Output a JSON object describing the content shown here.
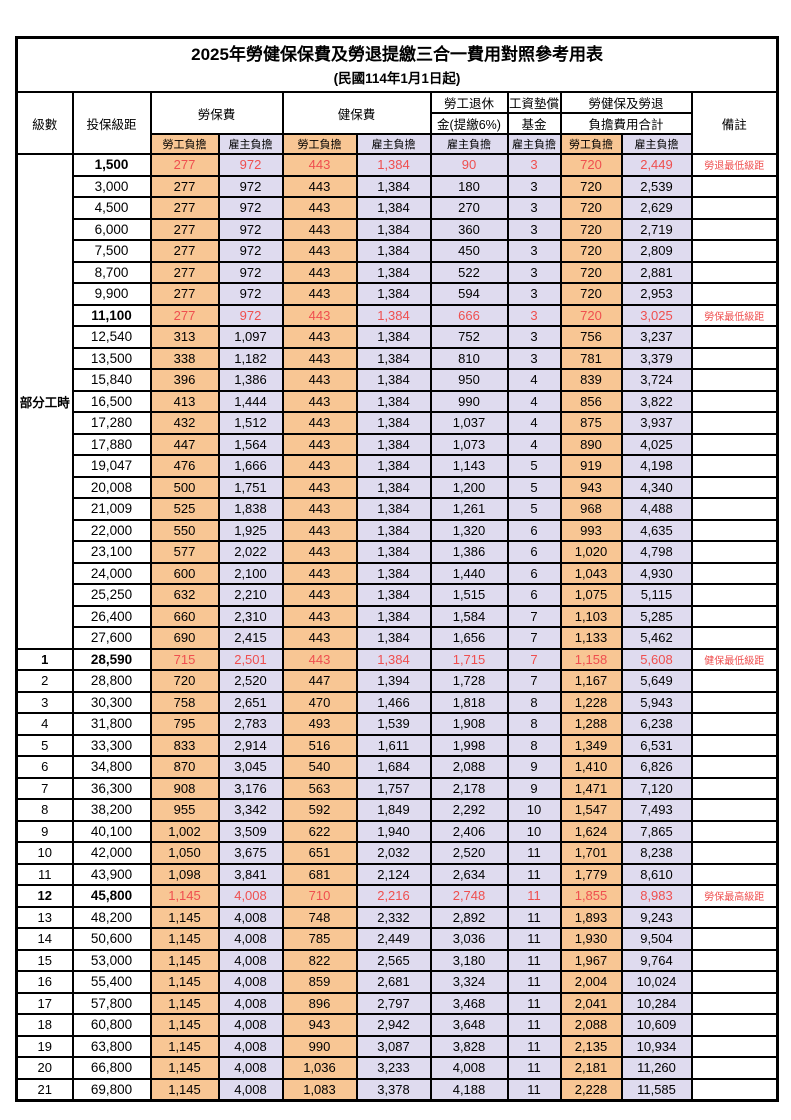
{
  "title": "2025年勞健保保費及勞退提繳三合一費用對照參考用表",
  "subtitle": "(民國114年1月1日起)",
  "part_time_label": "部分工時",
  "colors": {
    "employee_share_bg": "#f8c694",
    "employer_share_bg": "#dfdbef",
    "highlight_text": "#ef4f4f",
    "border": "#000000"
  },
  "header": {
    "level": "級數",
    "salary": "投保級距",
    "labor_insurance": "勞保費",
    "health_insurance": "健保費",
    "pension_line1": "勞工退休",
    "pension_line2": "金(提繳6%)",
    "wage_fund_line1": "工資墊償",
    "wage_fund_line2": "基金",
    "total_line1": "勞健保及勞退",
    "total_line2": "負擔費用合計",
    "note": "備註",
    "sub_employee": "勞工負擔",
    "sub_employer": "雇主負擔"
  },
  "rows": [
    {
      "level": null,
      "salary": "1,500",
      "labor_employee": "277",
      "labor_employer": "972",
      "health_employee": "443",
      "health_employer": "1,384",
      "pension_employer": "90",
      "fund_employer": "3",
      "total_employee": "720",
      "total_employer": "2,449",
      "note": "勞退最低級距",
      "hl": true
    },
    {
      "level": null,
      "salary": "3,000",
      "labor_employee": "277",
      "labor_employer": "972",
      "health_employee": "443",
      "health_employer": "1,384",
      "pension_employer": "180",
      "fund_employer": "3",
      "total_employee": "720",
      "total_employer": "2,539",
      "note": "",
      "hl": false
    },
    {
      "level": null,
      "salary": "4,500",
      "labor_employee": "277",
      "labor_employer": "972",
      "health_employee": "443",
      "health_employer": "1,384",
      "pension_employer": "270",
      "fund_employer": "3",
      "total_employee": "720",
      "total_employer": "2,629",
      "note": "",
      "hl": false
    },
    {
      "level": null,
      "salary": "6,000",
      "labor_employee": "277",
      "labor_employer": "972",
      "health_employee": "443",
      "health_employer": "1,384",
      "pension_employer": "360",
      "fund_employer": "3",
      "total_employee": "720",
      "total_employer": "2,719",
      "note": "",
      "hl": false
    },
    {
      "level": null,
      "salary": "7,500",
      "labor_employee": "277",
      "labor_employer": "972",
      "health_employee": "443",
      "health_employer": "1,384",
      "pension_employer": "450",
      "fund_employer": "3",
      "total_employee": "720",
      "total_employer": "2,809",
      "note": "",
      "hl": false
    },
    {
      "level": null,
      "salary": "8,700",
      "labor_employee": "277",
      "labor_employer": "972",
      "health_employee": "443",
      "health_employer": "1,384",
      "pension_employer": "522",
      "fund_employer": "3",
      "total_employee": "720",
      "total_employer": "2,881",
      "note": "",
      "hl": false
    },
    {
      "level": null,
      "salary": "9,900",
      "labor_employee": "277",
      "labor_employer": "972",
      "health_employee": "443",
      "health_employer": "1,384",
      "pension_employer": "594",
      "fund_employer": "3",
      "total_employee": "720",
      "total_employer": "2,953",
      "note": "",
      "hl": false
    },
    {
      "level": null,
      "salary": "11,100",
      "labor_employee": "277",
      "labor_employer": "972",
      "health_employee": "443",
      "health_employer": "1,384",
      "pension_employer": "666",
      "fund_employer": "3",
      "total_employee": "720",
      "total_employer": "3,025",
      "note": "勞保最低級距",
      "hl": true
    },
    {
      "level": null,
      "salary": "12,540",
      "labor_employee": "313",
      "labor_employer": "1,097",
      "health_employee": "443",
      "health_employer": "1,384",
      "pension_employer": "752",
      "fund_employer": "3",
      "total_employee": "756",
      "total_employer": "3,237",
      "note": "",
      "hl": false
    },
    {
      "level": null,
      "salary": "13,500",
      "labor_employee": "338",
      "labor_employer": "1,182",
      "health_employee": "443",
      "health_employer": "1,384",
      "pension_employer": "810",
      "fund_employer": "3",
      "total_employee": "781",
      "total_employer": "3,379",
      "note": "",
      "hl": false
    },
    {
      "level": null,
      "salary": "15,840",
      "labor_employee": "396",
      "labor_employer": "1,386",
      "health_employee": "443",
      "health_employer": "1,384",
      "pension_employer": "950",
      "fund_employer": "4",
      "total_employee": "839",
      "total_employer": "3,724",
      "note": "",
      "hl": false
    },
    {
      "level": null,
      "salary": "16,500",
      "labor_employee": "413",
      "labor_employer": "1,444",
      "health_employee": "443",
      "health_employer": "1,384",
      "pension_employer": "990",
      "fund_employer": "4",
      "total_employee": "856",
      "total_employer": "3,822",
      "note": "",
      "hl": false
    },
    {
      "level": null,
      "salary": "17,280",
      "labor_employee": "432",
      "labor_employer": "1,512",
      "health_employee": "443",
      "health_employer": "1,384",
      "pension_employer": "1,037",
      "fund_employer": "4",
      "total_employee": "875",
      "total_employer": "3,937",
      "note": "",
      "hl": false
    },
    {
      "level": null,
      "salary": "17,880",
      "labor_employee": "447",
      "labor_employer": "1,564",
      "health_employee": "443",
      "health_employer": "1,384",
      "pension_employer": "1,073",
      "fund_employer": "4",
      "total_employee": "890",
      "total_employer": "4,025",
      "note": "",
      "hl": false
    },
    {
      "level": null,
      "salary": "19,047",
      "labor_employee": "476",
      "labor_employer": "1,666",
      "health_employee": "443",
      "health_employer": "1,384",
      "pension_employer": "1,143",
      "fund_employer": "5",
      "total_employee": "919",
      "total_employer": "4,198",
      "note": "",
      "hl": false
    },
    {
      "level": null,
      "salary": "20,008",
      "labor_employee": "500",
      "labor_employer": "1,751",
      "health_employee": "443",
      "health_employer": "1,384",
      "pension_employer": "1,200",
      "fund_employer": "5",
      "total_employee": "943",
      "total_employer": "4,340",
      "note": "",
      "hl": false
    },
    {
      "level": null,
      "salary": "21,009",
      "labor_employee": "525",
      "labor_employer": "1,838",
      "health_employee": "443",
      "health_employer": "1,384",
      "pension_employer": "1,261",
      "fund_employer": "5",
      "total_employee": "968",
      "total_employer": "4,488",
      "note": "",
      "hl": false
    },
    {
      "level": null,
      "salary": "22,000",
      "labor_employee": "550",
      "labor_employer": "1,925",
      "health_employee": "443",
      "health_employer": "1,384",
      "pension_employer": "1,320",
      "fund_employer": "6",
      "total_employee": "993",
      "total_employer": "4,635",
      "note": "",
      "hl": false
    },
    {
      "level": null,
      "salary": "23,100",
      "labor_employee": "577",
      "labor_employer": "2,022",
      "health_employee": "443",
      "health_employer": "1,384",
      "pension_employer": "1,386",
      "fund_employer": "6",
      "total_employee": "1,020",
      "total_employer": "4,798",
      "note": "",
      "hl": false
    },
    {
      "level": null,
      "salary": "24,000",
      "labor_employee": "600",
      "labor_employer": "2,100",
      "health_employee": "443",
      "health_employer": "1,384",
      "pension_employer": "1,440",
      "fund_employer": "6",
      "total_employee": "1,043",
      "total_employer": "4,930",
      "note": "",
      "hl": false
    },
    {
      "level": null,
      "salary": "25,250",
      "labor_employee": "632",
      "labor_employer": "2,210",
      "health_employee": "443",
      "health_employer": "1,384",
      "pension_employer": "1,515",
      "fund_employer": "6",
      "total_employee": "1,075",
      "total_employer": "5,115",
      "note": "",
      "hl": false
    },
    {
      "level": null,
      "salary": "26,400",
      "labor_employee": "660",
      "labor_employer": "2,310",
      "health_employee": "443",
      "health_employer": "1,384",
      "pension_employer": "1,584",
      "fund_employer": "7",
      "total_employee": "1,103",
      "total_employer": "5,285",
      "note": "",
      "hl": false
    },
    {
      "level": null,
      "salary": "27,600",
      "labor_employee": "690",
      "labor_employer": "2,415",
      "health_employee": "443",
      "health_employer": "1,384",
      "pension_employer": "1,656",
      "fund_employer": "7",
      "total_employee": "1,133",
      "total_employer": "5,462",
      "note": "",
      "hl": false
    },
    {
      "level": "1",
      "salary": "28,590",
      "labor_employee": "715",
      "labor_employer": "2,501",
      "health_employee": "443",
      "health_employer": "1,384",
      "pension_employer": "1,715",
      "fund_employer": "7",
      "total_employee": "1,158",
      "total_employer": "5,608",
      "note": "健保最低級距",
      "hl": true
    },
    {
      "level": "2",
      "salary": "28,800",
      "labor_employee": "720",
      "labor_employer": "2,520",
      "health_employee": "447",
      "health_employer": "1,394",
      "pension_employer": "1,728",
      "fund_employer": "7",
      "total_employee": "1,167",
      "total_employer": "5,649",
      "note": "",
      "hl": false
    },
    {
      "level": "3",
      "salary": "30,300",
      "labor_employee": "758",
      "labor_employer": "2,651",
      "health_employee": "470",
      "health_employer": "1,466",
      "pension_employer": "1,818",
      "fund_employer": "8",
      "total_employee": "1,228",
      "total_employer": "5,943",
      "note": "",
      "hl": false
    },
    {
      "level": "4",
      "salary": "31,800",
      "labor_employee": "795",
      "labor_employer": "2,783",
      "health_employee": "493",
      "health_employer": "1,539",
      "pension_employer": "1,908",
      "fund_employer": "8",
      "total_employee": "1,288",
      "total_employer": "6,238",
      "note": "",
      "hl": false
    },
    {
      "level": "5",
      "salary": "33,300",
      "labor_employee": "833",
      "labor_employer": "2,914",
      "health_employee": "516",
      "health_employer": "1,611",
      "pension_employer": "1,998",
      "fund_employer": "8",
      "total_employee": "1,349",
      "total_employer": "6,531",
      "note": "",
      "hl": false
    },
    {
      "level": "6",
      "salary": "34,800",
      "labor_employee": "870",
      "labor_employer": "3,045",
      "health_employee": "540",
      "health_employer": "1,684",
      "pension_employer": "2,088",
      "fund_employer": "9",
      "total_employee": "1,410",
      "total_employer": "6,826",
      "note": "",
      "hl": false
    },
    {
      "level": "7",
      "salary": "36,300",
      "labor_employee": "908",
      "labor_employer": "3,176",
      "health_employee": "563",
      "health_employer": "1,757",
      "pension_employer": "2,178",
      "fund_employer": "9",
      "total_employee": "1,471",
      "total_employer": "7,120",
      "note": "",
      "hl": false
    },
    {
      "level": "8",
      "salary": "38,200",
      "labor_employee": "955",
      "labor_employer": "3,342",
      "health_employee": "592",
      "health_employer": "1,849",
      "pension_employer": "2,292",
      "fund_employer": "10",
      "total_employee": "1,547",
      "total_employer": "7,493",
      "note": "",
      "hl": false
    },
    {
      "level": "9",
      "salary": "40,100",
      "labor_employee": "1,002",
      "labor_employer": "3,509",
      "health_employee": "622",
      "health_employer": "1,940",
      "pension_employer": "2,406",
      "fund_employer": "10",
      "total_employee": "1,624",
      "total_employer": "7,865",
      "note": "",
      "hl": false
    },
    {
      "level": "10",
      "salary": "42,000",
      "labor_employee": "1,050",
      "labor_employer": "3,675",
      "health_employee": "651",
      "health_employer": "2,032",
      "pension_employer": "2,520",
      "fund_employer": "11",
      "total_employee": "1,701",
      "total_employer": "8,238",
      "note": "",
      "hl": false
    },
    {
      "level": "11",
      "salary": "43,900",
      "labor_employee": "1,098",
      "labor_employer": "3,841",
      "health_employee": "681",
      "health_employer": "2,124",
      "pension_employer": "2,634",
      "fund_employer": "11",
      "total_employee": "1,779",
      "total_employer": "8,610",
      "note": "",
      "hl": false
    },
    {
      "level": "12",
      "salary": "45,800",
      "labor_employee": "1,145",
      "labor_employer": "4,008",
      "health_employee": "710",
      "health_employer": "2,216",
      "pension_employer": "2,748",
      "fund_employer": "11",
      "total_employee": "1,855",
      "total_employer": "8,983",
      "note": "勞保最高級距",
      "hl": true
    },
    {
      "level": "13",
      "salary": "48,200",
      "labor_employee": "1,145",
      "labor_employer": "4,008",
      "health_employee": "748",
      "health_employer": "2,332",
      "pension_employer": "2,892",
      "fund_employer": "11",
      "total_employee": "1,893",
      "total_employer": "9,243",
      "note": "",
      "hl": false
    },
    {
      "level": "14",
      "salary": "50,600",
      "labor_employee": "1,145",
      "labor_employer": "4,008",
      "health_employee": "785",
      "health_employer": "2,449",
      "pension_employer": "3,036",
      "fund_employer": "11",
      "total_employee": "1,930",
      "total_employer": "9,504",
      "note": "",
      "hl": false
    },
    {
      "level": "15",
      "salary": "53,000",
      "labor_employee": "1,145",
      "labor_employer": "4,008",
      "health_employee": "822",
      "health_employer": "2,565",
      "pension_employer": "3,180",
      "fund_employer": "11",
      "total_employee": "1,967",
      "total_employer": "9,764",
      "note": "",
      "hl": false
    },
    {
      "level": "16",
      "salary": "55,400",
      "labor_employee": "1,145",
      "labor_employer": "4,008",
      "health_employee": "859",
      "health_employer": "2,681",
      "pension_employer": "3,324",
      "fund_employer": "11",
      "total_employee": "2,004",
      "total_employer": "10,024",
      "note": "",
      "hl": false
    },
    {
      "level": "17",
      "salary": "57,800",
      "labor_employee": "1,145",
      "labor_employer": "4,008",
      "health_employee": "896",
      "health_employer": "2,797",
      "pension_employer": "3,468",
      "fund_employer": "11",
      "total_employee": "2,041",
      "total_employer": "10,284",
      "note": "",
      "hl": false
    },
    {
      "level": "18",
      "salary": "60,800",
      "labor_employee": "1,145",
      "labor_employer": "4,008",
      "health_employee": "943",
      "health_employer": "2,942",
      "pension_employer": "3,648",
      "fund_employer": "11",
      "total_employee": "2,088",
      "total_employer": "10,609",
      "note": "",
      "hl": false
    },
    {
      "level": "19",
      "salary": "63,800",
      "labor_employee": "1,145",
      "labor_employer": "4,008",
      "health_employee": "990",
      "health_employer": "3,087",
      "pension_employer": "3,828",
      "fund_employer": "11",
      "total_employee": "2,135",
      "total_employer": "10,934",
      "note": "",
      "hl": false
    },
    {
      "level": "20",
      "salary": "66,800",
      "labor_employee": "1,145",
      "labor_employer": "4,008",
      "health_employee": "1,036",
      "health_employer": "3,233",
      "pension_employer": "4,008",
      "fund_employer": "11",
      "total_employee": "2,181",
      "total_employer": "11,260",
      "note": "",
      "hl": false
    },
    {
      "level": "21",
      "salary": "69,800",
      "labor_employee": "1,145",
      "labor_employer": "4,008",
      "health_employee": "1,083",
      "health_employer": "3,378",
      "pension_employer": "4,188",
      "fund_employer": "11",
      "total_employee": "2,228",
      "total_employer": "11,585",
      "note": "",
      "hl": false
    }
  ]
}
